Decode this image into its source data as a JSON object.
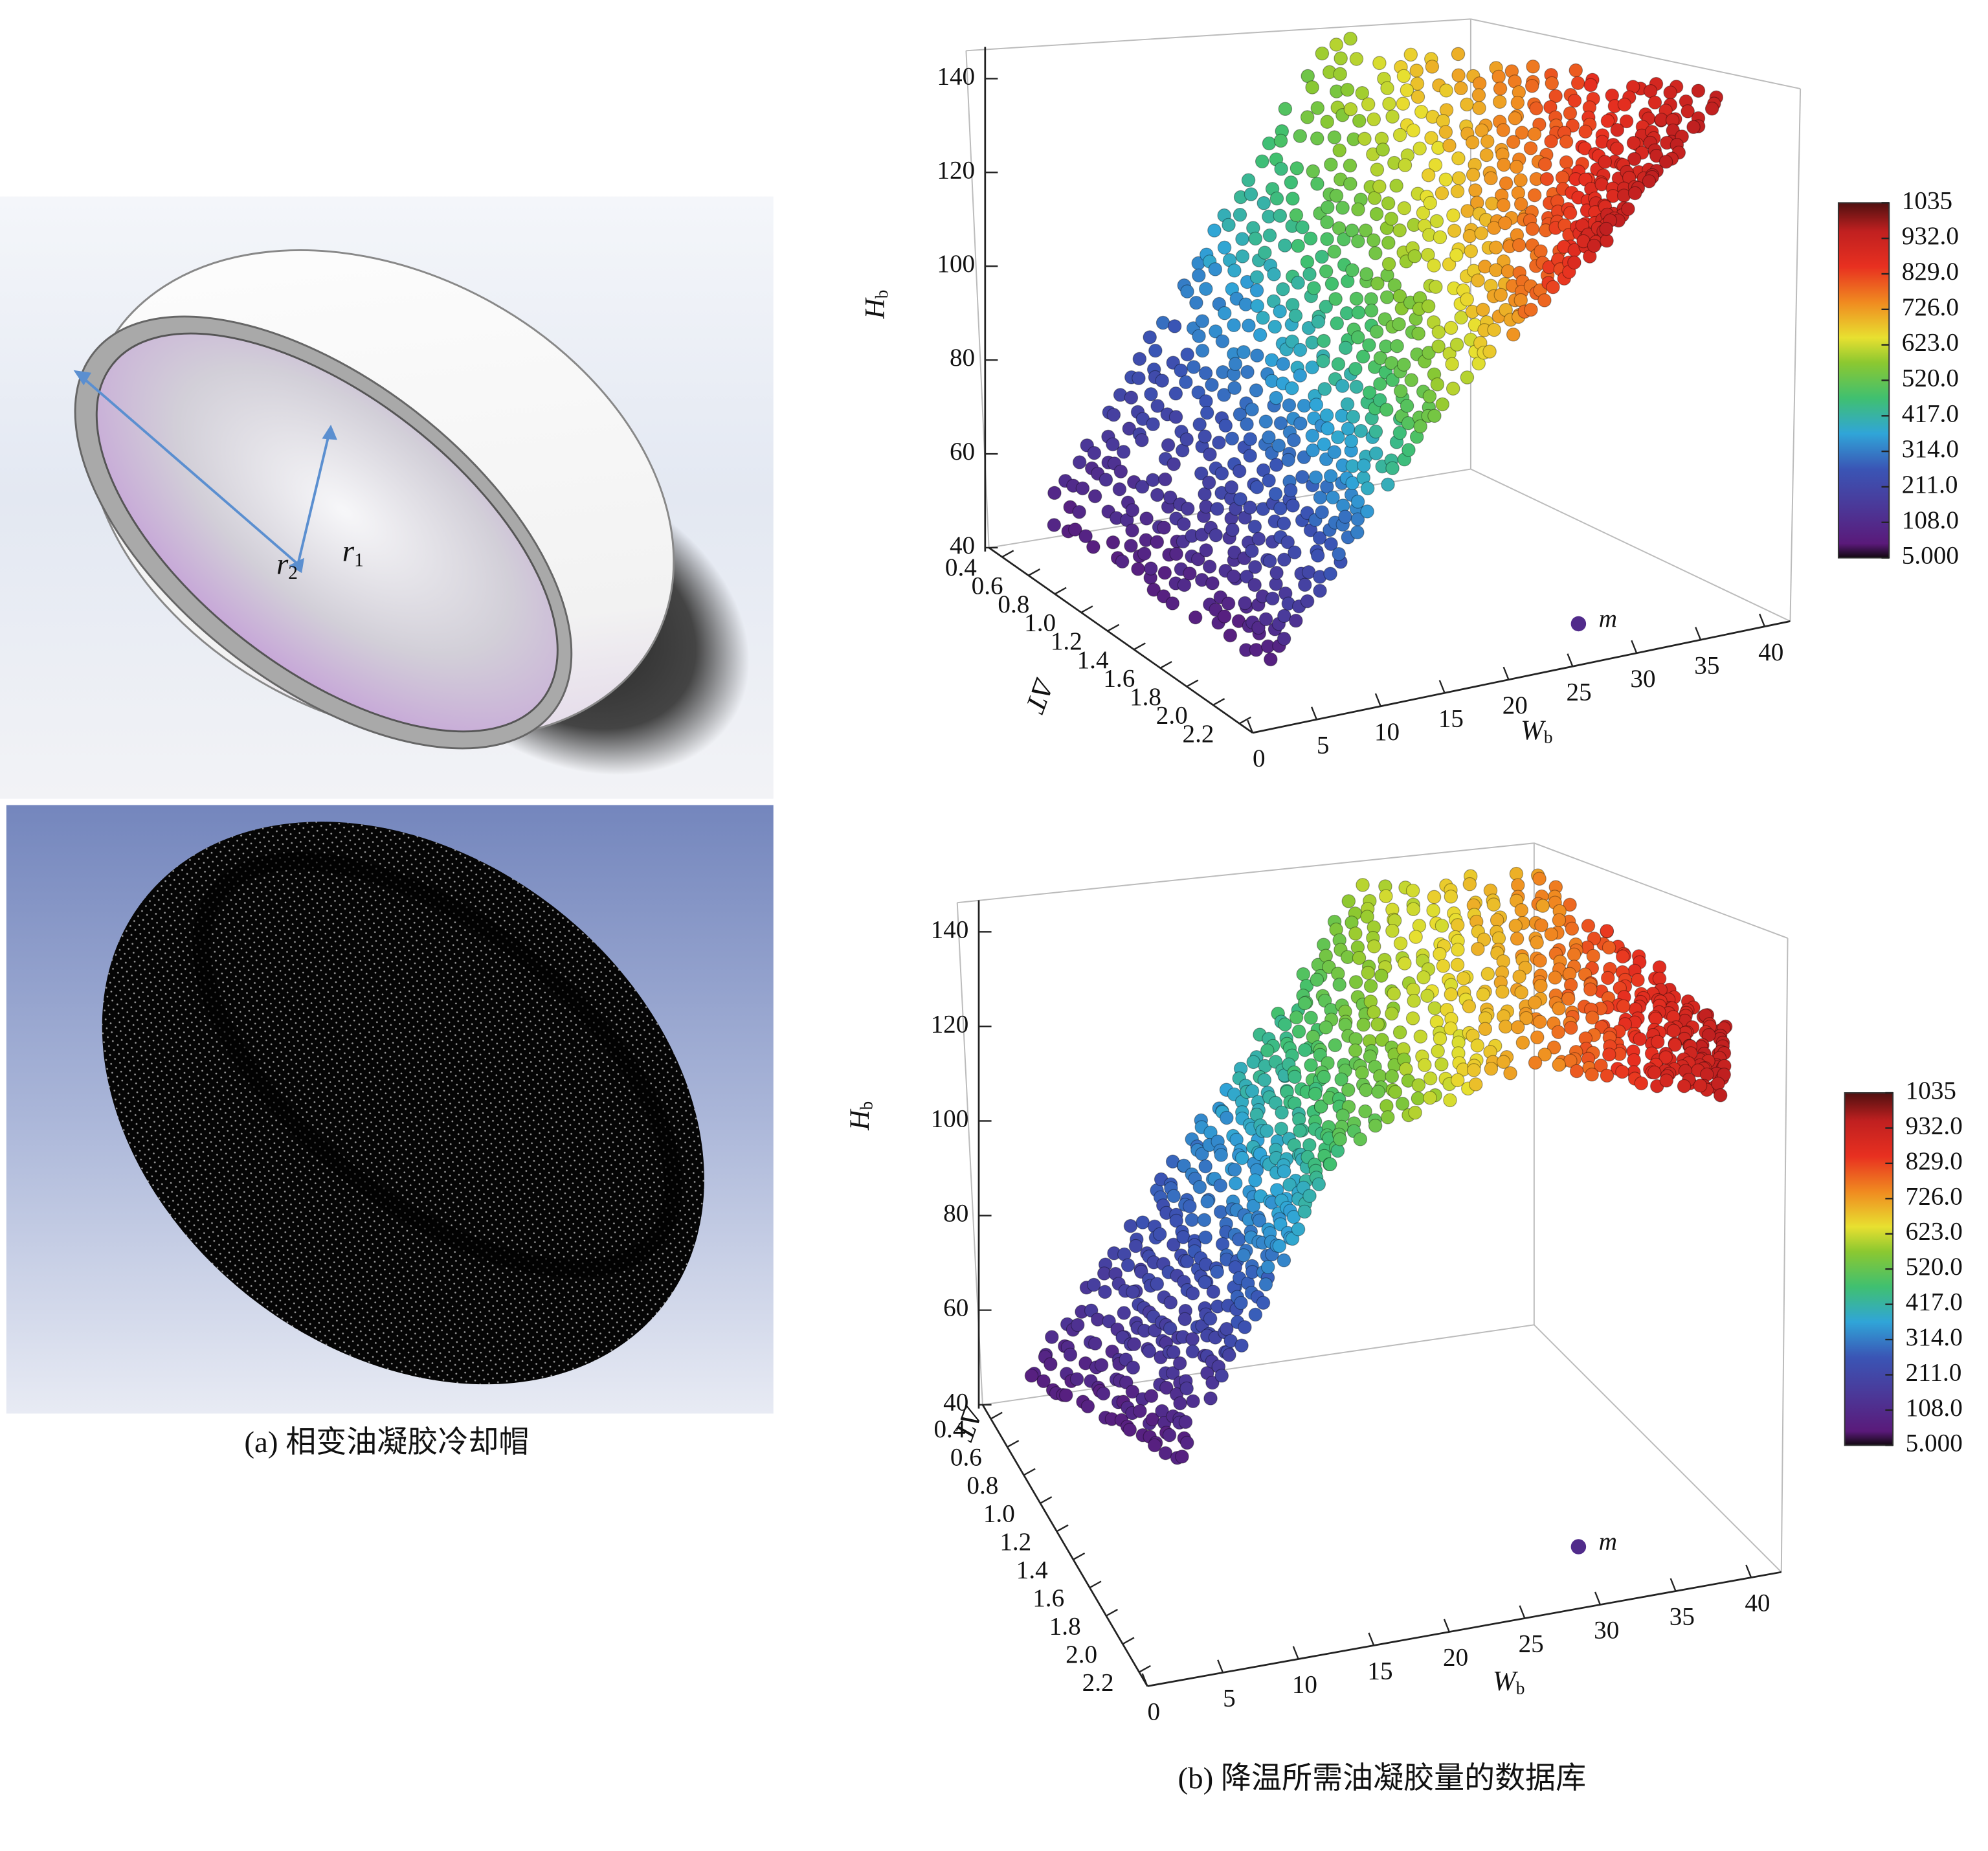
{
  "panel_a": {
    "r1": {
      "main": "r",
      "sub": "1"
    },
    "r2": {
      "main": "r",
      "sub": "2"
    },
    "caption": "(a) 相变油凝胶冷却帽"
  },
  "panel_b": {
    "caption": "(b) 降温所需油凝胶量的数据库"
  },
  "chart_data": [
    {
      "type": "scatter3d",
      "x_label": {
        "main": "W",
        "sub": "b"
      },
      "y_label": "ΔT",
      "z_label": {
        "main": "H",
        "sub": "b"
      },
      "xlim": [
        0,
        42
      ],
      "xticks": [
        0,
        5,
        10,
        15,
        20,
        25,
        30,
        35,
        40
      ],
      "ylim": [
        0.3,
        2.3
      ],
      "yticks": [
        0.4,
        0.6,
        0.8,
        {
          "value": 1,
          "label": "1.0"
        },
        1.2,
        1.4,
        1.6,
        1.8,
        {
          "value": 2,
          "label": "2.0"
        },
        2.2
      ],
      "zlim": [
        40,
        146
      ],
      "zticks": [
        40,
        60,
        80,
        100,
        120,
        140
      ],
      "colorbar": {
        "lim": [
          5,
          1035
        ],
        "ticks": [
          {
            "value": 5,
            "label": "5.000"
          },
          {
            "value": 108,
            "label": "108.0"
          },
          {
            "value": 211,
            "label": "211.0"
          },
          {
            "value": 314,
            "label": "314.0"
          },
          {
            "value": 417,
            "label": "417.0"
          },
          {
            "value": 520,
            "label": "520.0"
          },
          {
            "value": 623,
            "label": "623.0"
          },
          {
            "value": 726,
            "label": "726.0"
          },
          {
            "value": 829,
            "label": "829.0"
          },
          {
            "value": 932,
            "label": "932.0"
          },
          1035
        ]
      },
      "legend": "m"
    },
    {
      "type": "scatter3d",
      "x_label": {
        "main": "W",
        "sub": "b"
      },
      "y_label": "ΔT",
      "z_label": {
        "main": "H",
        "sub": "b"
      },
      "xlim": [
        0,
        42
      ],
      "xticks": [
        0,
        5,
        10,
        15,
        20,
        25,
        30,
        35,
        40
      ],
      "ylim": [
        0.3,
        2.3
      ],
      "yticks": [
        0.4,
        0.6,
        0.8,
        {
          "value": 1,
          "label": "1.0"
        },
        1.2,
        1.4,
        1.6,
        1.8,
        {
          "value": 2,
          "label": "2.0"
        },
        2.2
      ],
      "zlim": [
        40,
        146
      ],
      "zticks": [
        40,
        60,
        80,
        100,
        120,
        140
      ],
      "colorbar": {
        "lim": [
          5,
          1035
        ],
        "ticks": [
          {
            "value": 5,
            "label": "5.000"
          },
          {
            "value": 108,
            "label": "108.0"
          },
          {
            "value": 211,
            "label": "211.0"
          },
          {
            "value": 314,
            "label": "314.0"
          },
          {
            "value": 417,
            "label": "417.0"
          },
          {
            "value": 520,
            "label": "520.0"
          },
          {
            "value": 623,
            "label": "623.0"
          },
          {
            "value": 726,
            "label": "726.0"
          },
          {
            "value": 829,
            "label": "829.0"
          },
          {
            "value": 932,
            "label": "932.0"
          },
          1035
        ]
      },
      "legend": "m"
    }
  ]
}
